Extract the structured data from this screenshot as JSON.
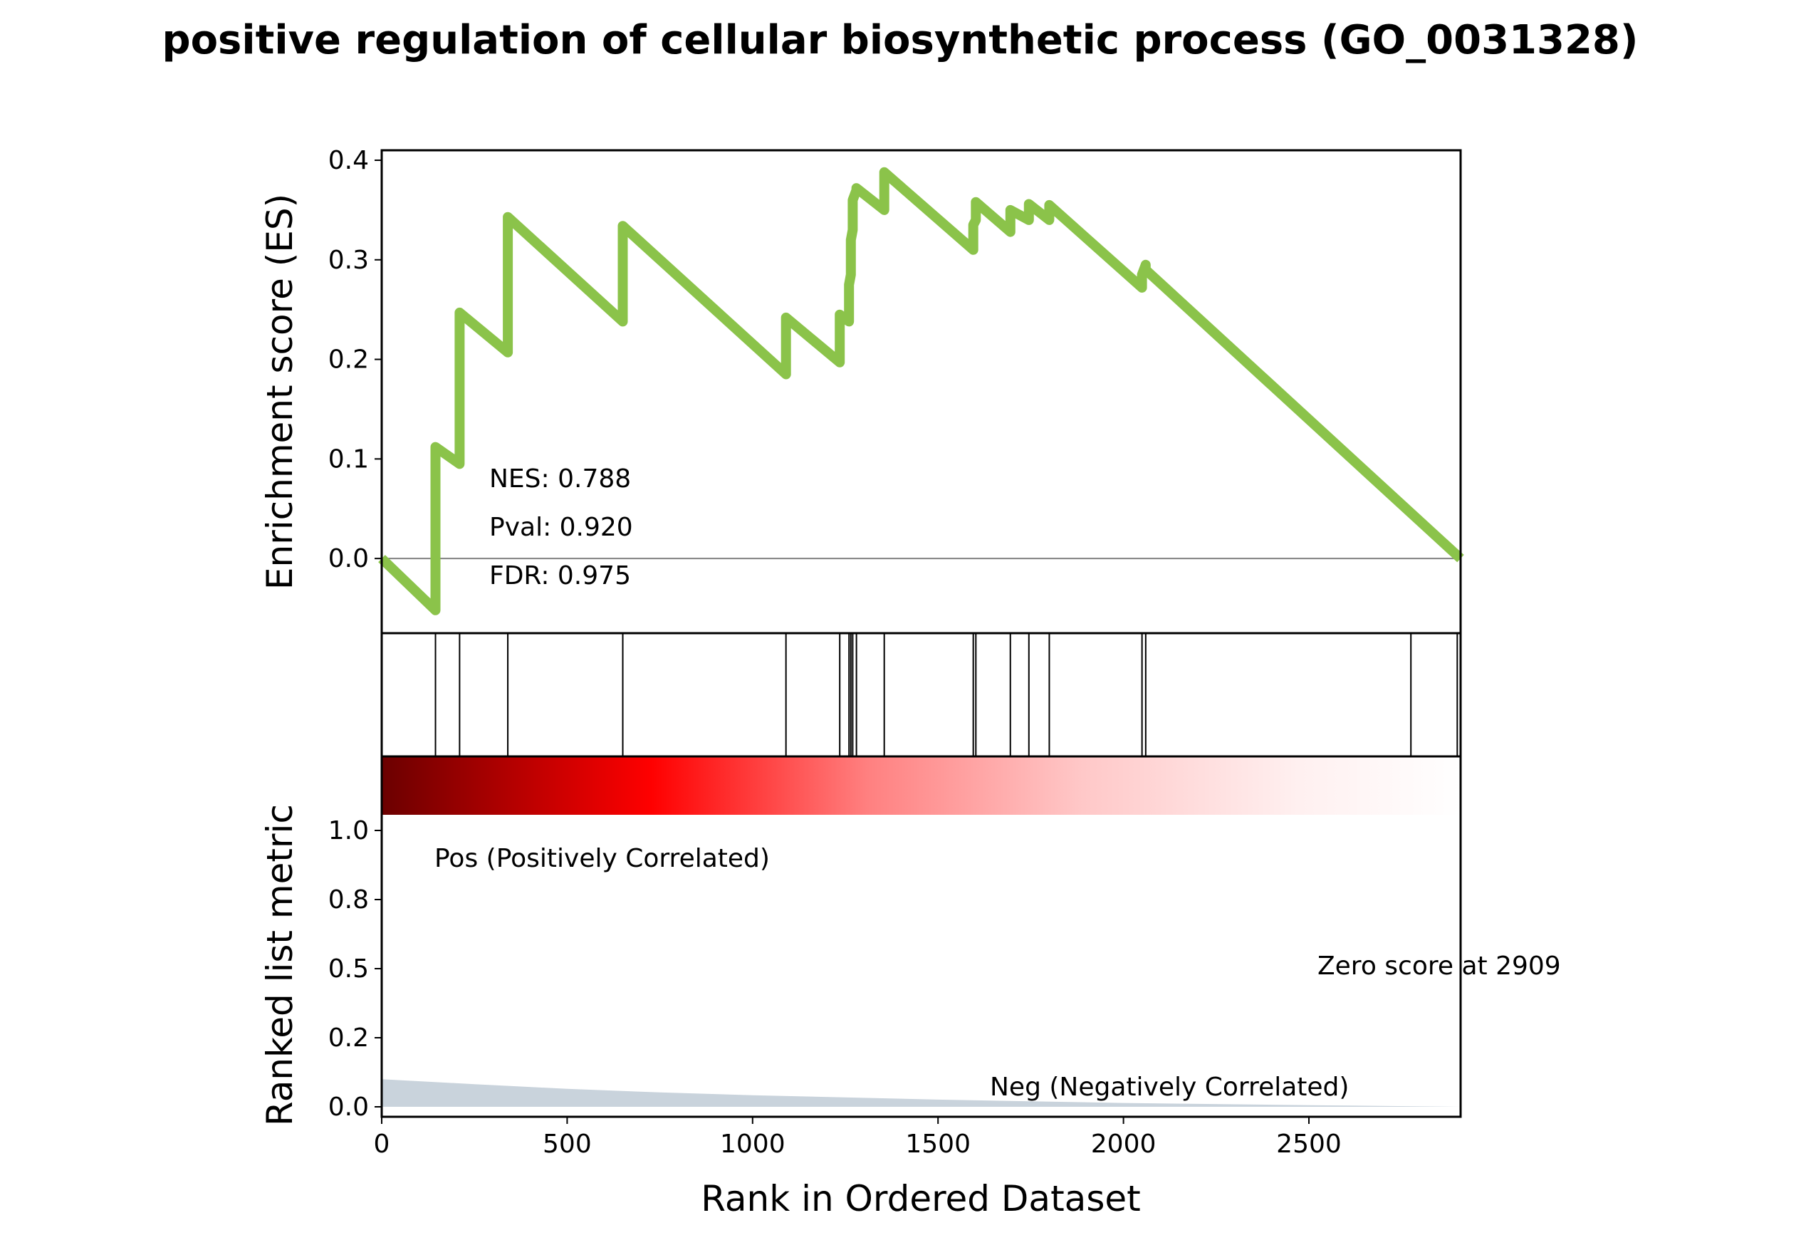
{
  "chart_data": {
    "type": "line",
    "title": "positive regulation of cellular biosynthetic process (GO_0031328)",
    "xlabel": "Rank in Ordered Dataset",
    "xlim": [
      0,
      2909
    ],
    "x_ticks": [
      "0",
      "500",
      "1000",
      "1500",
      "2000",
      "2500"
    ],
    "es_panel": {
      "ylabel": "Enrichment score (ES)",
      "ylim": [
        -0.075,
        0.41
      ],
      "y_ticks": [
        "0.0",
        "0.1",
        "0.2",
        "0.3",
        "0.4"
      ],
      "y_tick_values": [
        0.0,
        0.1,
        0.2,
        0.3,
        0.4
      ],
      "line_color": "#8bc34a",
      "zero_line": true,
      "series": [
        {
          "x": [
            0,
            145,
            145,
            210,
            210,
            340,
            340,
            650,
            650,
            1090,
            1090,
            1235,
            1235,
            1260,
            1260,
            1265,
            1265,
            1270,
            1270,
            1280,
            1280,
            1355,
            1355,
            1595,
            1595,
            1602,
            1602,
            1695,
            1695,
            1745,
            1745,
            1800,
            1800,
            2050,
            2050,
            2060,
            2060,
            2909
          ],
          "y": [
            0.0,
            -0.052,
            0.112,
            0.095,
            0.247,
            0.207,
            0.343,
            0.238,
            0.334,
            0.185,
            0.242,
            0.197,
            0.245,
            0.238,
            0.275,
            0.285,
            0.32,
            0.33,
            0.36,
            0.37,
            0.372,
            0.35,
            0.388,
            0.31,
            0.335,
            0.34,
            0.358,
            0.328,
            0.35,
            0.34,
            0.356,
            0.34,
            0.355,
            0.272,
            0.285,
            0.295,
            0.29,
            0.0
          ]
        }
      ],
      "annotations": {
        "nes": "NES: 0.788",
        "pval": "Pval: 0.920",
        "fdr": "FDR: 0.975"
      }
    },
    "hits_panel": {
      "hit_ranks": [
        145,
        210,
        340,
        650,
        1090,
        1235,
        1260,
        1265,
        1270,
        1280,
        1355,
        1595,
        1602,
        1695,
        1745,
        1800,
        2050,
        2060,
        2775,
        2900
      ]
    },
    "metric_panel": {
      "ylabel": "Ranked list metric",
      "ylim": [
        -0.05,
        1.05
      ],
      "y_ticks": [
        "0.0",
        "0.2",
        "0.5",
        "0.8",
        "1.0"
      ],
      "y_tick_values": [
        0.0,
        0.25,
        0.5,
        0.75,
        1.0
      ],
      "fill_color": "#c9d3dc",
      "metric_values": {
        "x": [
          0,
          250,
          500,
          750,
          1000,
          1500,
          2000,
          2500,
          2909
        ],
        "y": [
          0.1,
          0.082,
          0.065,
          0.052,
          0.042,
          0.026,
          0.014,
          0.006,
          0.0
        ]
      },
      "pos_label": "Pos (Positively Correlated)",
      "neg_label": "Neg (Negatively Correlated)",
      "zero_score": "Zero score at 2909",
      "pos_color": "#ff0000",
      "neg_color": "#0000ff"
    }
  }
}
